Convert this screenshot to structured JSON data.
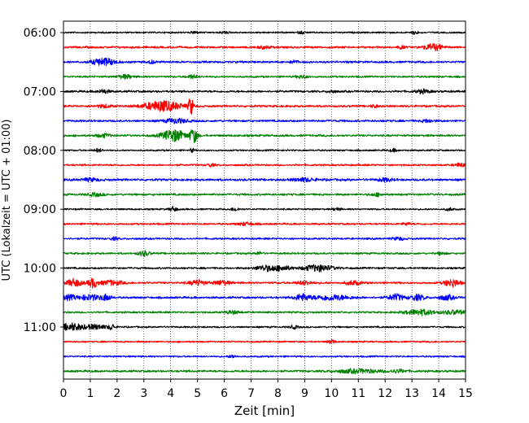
{
  "chart_data": {
    "type": "line",
    "title": "",
    "xlabel": "Zeit  [min]",
    "ylabel": "UTC (Lokalzeit = UTC + 01:00)",
    "xlim": [
      0,
      15
    ],
    "x_ticks": [
      0,
      1,
      2,
      3,
      4,
      5,
      6,
      7,
      8,
      9,
      10,
      11,
      12,
      13,
      14,
      15
    ],
    "y_tick_labels": [
      "06:00",
      "07:00",
      "08:00",
      "09:00",
      "10:00",
      "11:00"
    ],
    "y_tick_rows": [
      0,
      4,
      8,
      12,
      16,
      20
    ],
    "grid": "vertical dotted",
    "row_interval_min": 15,
    "trace_colors": [
      "#000000",
      "#ff0000",
      "#0000ff",
      "#008000"
    ],
    "rows": [
      {
        "start": "06:00",
        "color": "#000000",
        "noise": 0.8,
        "events": [
          {
            "t": 4.9,
            "a": 1.5,
            "w": 0.08
          },
          {
            "t": 6,
            "a": 1.2,
            "w": 0.1
          },
          {
            "t": 8.9,
            "a": 1.2,
            "w": 0.1
          },
          {
            "t": 13.1,
            "a": 1.6,
            "w": 0.1
          }
        ]
      },
      {
        "start": "06:15",
        "color": "#ff0000",
        "noise": 1.0,
        "events": [
          {
            "t": 7.5,
            "a": 1.6,
            "w": 0.15
          },
          {
            "t": 12.6,
            "a": 1.5,
            "w": 0.1
          },
          {
            "t": 13.8,
            "a": 3.5,
            "w": 0.25
          }
        ]
      },
      {
        "start": "06:30",
        "color": "#0000ff",
        "noise": 1.0,
        "events": [
          {
            "t": 1.5,
            "a": 4.0,
            "w": 0.3
          },
          {
            "t": 3.3,
            "a": 1.6,
            "w": 0.1
          },
          {
            "t": 8.6,
            "a": 1.5,
            "w": 0.1
          }
        ]
      },
      {
        "start": "06:45",
        "color": "#008000",
        "noise": 0.9,
        "events": [
          {
            "t": 2.3,
            "a": 2.0,
            "w": 0.2
          },
          {
            "t": 4.8,
            "a": 1.8,
            "w": 0.15
          },
          {
            "t": 8.9,
            "a": 1.6,
            "w": 0.15
          }
        ]
      },
      {
        "start": "07:00",
        "color": "#000000",
        "noise": 1.0,
        "events": [
          {
            "t": 1.5,
            "a": 1.8,
            "w": 0.15
          },
          {
            "t": 10.0,
            "a": 1.5,
            "w": 0.1
          },
          {
            "t": 13.4,
            "a": 1.8,
            "w": 0.2
          }
        ]
      },
      {
        "start": "07:15",
        "color": "#ff0000",
        "noise": 1.0,
        "events": [
          {
            "t": 1.5,
            "a": 1.6,
            "w": 0.2
          },
          {
            "t": 3.7,
            "a": 5.5,
            "w": 0.5
          },
          {
            "t": 4.75,
            "a": 10.0,
            "w": 0.06
          },
          {
            "t": 11.6,
            "a": 1.5,
            "w": 0.1
          }
        ]
      },
      {
        "start": "07:30",
        "color": "#0000ff",
        "noise": 1.0,
        "events": [
          {
            "t": 4.2,
            "a": 2.5,
            "w": 0.3
          },
          {
            "t": 13.6,
            "a": 1.6,
            "w": 0.15
          }
        ]
      },
      {
        "start": "07:45",
        "color": "#008000",
        "noise": 1.0,
        "events": [
          {
            "t": 1.5,
            "a": 1.8,
            "w": 0.2
          },
          {
            "t": 4.1,
            "a": 6.5,
            "w": 0.3
          },
          {
            "t": 4.85,
            "a": 8.0,
            "w": 0.1
          }
        ]
      },
      {
        "start": "08:00",
        "color": "#000000",
        "noise": 0.8,
        "events": [
          {
            "t": 1.3,
            "a": 1.8,
            "w": 0.1
          },
          {
            "t": 4.8,
            "a": 2.0,
            "w": 0.05
          },
          {
            "t": 12.3,
            "a": 1.5,
            "w": 0.1
          }
        ]
      },
      {
        "start": "08:15",
        "color": "#ff0000",
        "noise": 0.9,
        "events": [
          {
            "t": 5.5,
            "a": 1.6,
            "w": 0.1
          },
          {
            "t": 14.8,
            "a": 2.0,
            "w": 0.15
          }
        ]
      },
      {
        "start": "08:30",
        "color": "#0000ff",
        "noise": 1.1,
        "events": [
          {
            "t": 1.0,
            "a": 1.6,
            "w": 0.2
          },
          {
            "t": 9.0,
            "a": 1.8,
            "w": 0.3
          },
          {
            "t": 12.0,
            "a": 1.6,
            "w": 0.2
          }
        ]
      },
      {
        "start": "08:45",
        "color": "#008000",
        "noise": 1.0,
        "events": [
          {
            "t": 1.2,
            "a": 1.6,
            "w": 0.2
          },
          {
            "t": 11.7,
            "a": 1.5,
            "w": 0.15
          }
        ]
      },
      {
        "start": "09:00",
        "color": "#000000",
        "noise": 0.8,
        "events": [
          {
            "t": 4.1,
            "a": 2.5,
            "w": 0.1
          },
          {
            "t": 6.4,
            "a": 1.8,
            "w": 0.1
          },
          {
            "t": 10.2,
            "a": 1.5,
            "w": 0.1
          },
          {
            "t": 14.4,
            "a": 1.5,
            "w": 0.1
          }
        ]
      },
      {
        "start": "09:15",
        "color": "#ff0000",
        "noise": 0.9,
        "events": [
          {
            "t": 6.8,
            "a": 1.6,
            "w": 0.2
          },
          {
            "t": 12.8,
            "a": 1.5,
            "w": 0.1
          }
        ]
      },
      {
        "start": "09:30",
        "color": "#0000ff",
        "noise": 0.9,
        "events": [
          {
            "t": 1.9,
            "a": 1.5,
            "w": 0.1
          },
          {
            "t": 12.5,
            "a": 1.5,
            "w": 0.15
          }
        ]
      },
      {
        "start": "09:45",
        "color": "#008000",
        "noise": 0.9,
        "events": [
          {
            "t": 3.0,
            "a": 2.8,
            "w": 0.15
          },
          {
            "t": 7.3,
            "a": 1.5,
            "w": 0.1
          },
          {
            "t": 14.1,
            "a": 1.5,
            "w": 0.1
          }
        ]
      },
      {
        "start": "10:00",
        "color": "#000000",
        "noise": 0.9,
        "events": [
          {
            "t": 7.6,
            "a": 3.0,
            "w": 0.3
          },
          {
            "t": 8.2,
            "a": 2.2,
            "w": 0.2
          },
          {
            "t": 9.5,
            "a": 3.5,
            "w": 0.4
          }
        ]
      },
      {
        "start": "10:15",
        "color": "#ff0000",
        "noise": 1.0,
        "events": [
          {
            "t": 0.4,
            "a": 4.0,
            "w": 0.2
          },
          {
            "t": 1.1,
            "a": 5.0,
            "w": 0.12
          },
          {
            "t": 1.8,
            "a": 2.5,
            "w": 0.3
          },
          {
            "t": 5.0,
            "a": 2.8,
            "w": 0.2
          },
          {
            "t": 5.9,
            "a": 2.5,
            "w": 0.2
          },
          {
            "t": 9.0,
            "a": 2.0,
            "w": 0.2
          },
          {
            "t": 10.8,
            "a": 2.2,
            "w": 0.2
          },
          {
            "t": 14.5,
            "a": 4.0,
            "w": 0.2
          }
        ]
      },
      {
        "start": "10:30",
        "color": "#0000ff",
        "noise": 1.0,
        "events": [
          {
            "t": 0.2,
            "a": 2.5,
            "w": 0.2
          },
          {
            "t": 1.0,
            "a": 2.8,
            "w": 0.3
          },
          {
            "t": 1.6,
            "a": 3.2,
            "w": 0.12
          },
          {
            "t": 8.9,
            "a": 3.5,
            "w": 0.2
          },
          {
            "t": 10.0,
            "a": 2.8,
            "w": 0.5
          },
          {
            "t": 12.4,
            "a": 3.5,
            "w": 0.2
          },
          {
            "t": 13.2,
            "a": 3.0,
            "w": 0.2
          },
          {
            "t": 14.3,
            "a": 2.5,
            "w": 0.2
          }
        ]
      },
      {
        "start": "10:45",
        "color": "#008000",
        "noise": 0.9,
        "events": [
          {
            "t": 6.3,
            "a": 1.6,
            "w": 0.2
          },
          {
            "t": 13.3,
            "a": 3.0,
            "w": 0.4
          },
          {
            "t": 14.6,
            "a": 2.2,
            "w": 0.3
          }
        ]
      },
      {
        "start": "11:00",
        "color": "#000000",
        "noise": 0.8,
        "events": [
          {
            "t": 0.3,
            "a": 4.0,
            "w": 0.3
          },
          {
            "t": 1.2,
            "a": 2.5,
            "w": 0.3
          },
          {
            "t": 1.8,
            "a": 3.0,
            "w": 0.08
          },
          {
            "t": 8.6,
            "a": 1.8,
            "w": 0.1
          }
        ]
      },
      {
        "start": "11:15",
        "color": "#ff0000",
        "noise": 0.8,
        "events": [
          {
            "t": 10.0,
            "a": 2.0,
            "w": 0.1
          }
        ]
      },
      {
        "start": "11:30",
        "color": "#0000ff",
        "noise": 0.8,
        "events": [
          {
            "t": 6.3,
            "a": 1.5,
            "w": 0.1
          }
        ]
      },
      {
        "start": "11:45",
        "color": "#008000",
        "noise": 1.0,
        "events": [
          {
            "t": 11.0,
            "a": 2.0,
            "w": 0.6
          },
          {
            "t": 12.5,
            "a": 1.6,
            "w": 0.2
          }
        ]
      }
    ]
  }
}
